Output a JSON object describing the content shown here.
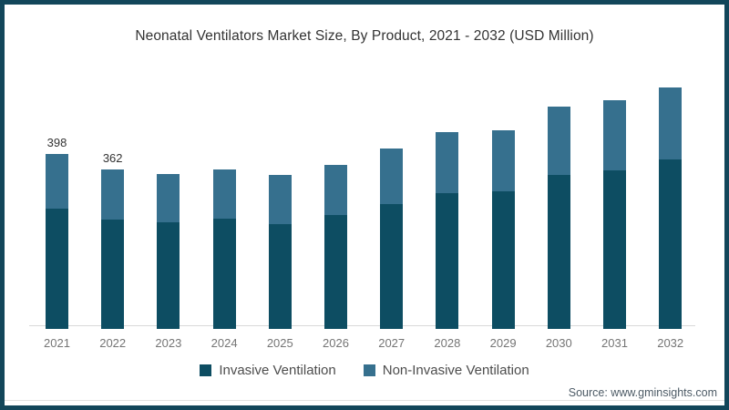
{
  "title": "Neonatal Ventilators Market Size, By Product, 2021 - 2032 (USD Million)",
  "colors": {
    "frame_border": "#12465a",
    "background": "#ffffff",
    "invasive": "#0d4d62",
    "non_invasive": "#36708e",
    "axis_line": "#d9d9d9",
    "tick_label": "#757575",
    "value_label": "#333333",
    "legend_text": "#4d4d4d",
    "source_text": "#4d5b66",
    "divider": "#e3e3e3"
  },
  "chart_data": {
    "type": "bar",
    "stacked": true,
    "title": "Neonatal Ventilators Market Size, By Product, 2021 - 2032 (USD Million)",
    "unit": "USD Million",
    "categories": [
      "2021",
      "2022",
      "2023",
      "2024",
      "2025",
      "2026",
      "2027",
      "2028",
      "2029",
      "2030",
      "2031",
      "2032"
    ],
    "series": [
      {
        "name": "Invasive Ventilation",
        "color": "#0d4d62",
        "values": [
          274,
          248,
          241,
          250,
          238,
          259,
          283,
          308,
          312,
          350,
          359,
          384
        ]
      },
      {
        "name": "Non-Invasive Ventilation",
        "color": "#36708e",
        "values": [
          124,
          114,
          111,
          111,
          111,
          113,
          126,
          138,
          138,
          155,
          160,
          164
        ]
      }
    ],
    "totals": [
      398,
      362,
      352,
      361,
      349,
      372,
      409,
      446,
      450,
      505,
      519,
      548
    ],
    "value_labels": [
      "398",
      "362",
      "",
      "",
      "",
      "",
      "",
      "",
      "",
      "",
      "",
      ""
    ],
    "xlabel": "",
    "ylabel": "",
    "ylim": [
      0,
      600
    ],
    "grid": false,
    "y_axis_visible": false,
    "legend_position": "bottom"
  },
  "footer": {
    "source": "Source: www.gminsights.com"
  }
}
